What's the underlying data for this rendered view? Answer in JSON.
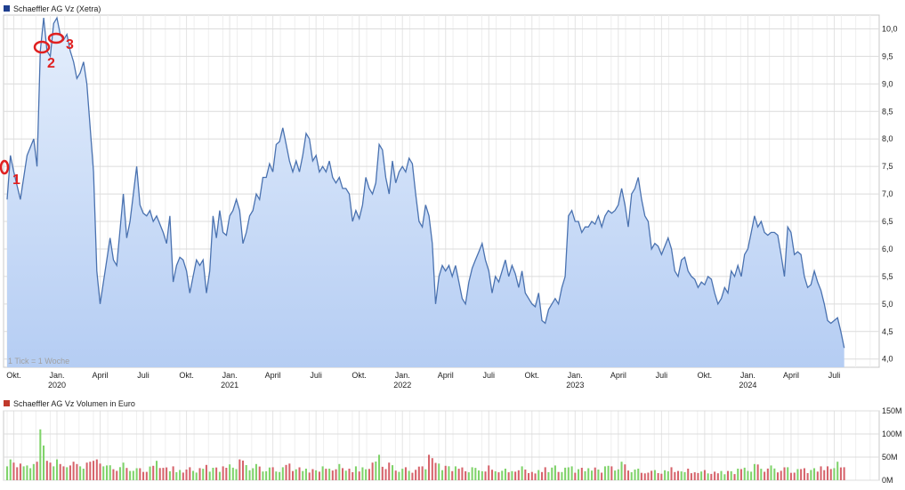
{
  "price_chart": {
    "legend": "Schaeffler AG Vz (Xetra)",
    "legend_color": "#1f3f8f",
    "tick_note": "1 Tick = 1 Woche",
    "line_color": "#4a72b0",
    "fill_color_top": "#e4eefc",
    "fill_color_bottom": "#b5cdf3"
  },
  "volume_chart": {
    "legend": "Schaeffler AG Vz Volumen in Euro",
    "legend_color": "#c0392b",
    "up_color": "#7fd36a",
    "down_color": "#d6636b"
  },
  "annotations": [
    {
      "label": "1",
      "color": "#e02020"
    },
    {
      "label": "2",
      "color": "#e02020"
    },
    {
      "label": "3",
      "color": "#e02020"
    }
  ],
  "chart_data": [
    {
      "type": "area",
      "y_axis_position": "right",
      "ylim": [
        3.85,
        10.25
      ],
      "yticks": [
        4.0,
        4.5,
        5.0,
        5.5,
        6.0,
        6.5,
        7.0,
        7.5,
        8.0,
        8.5,
        9.0,
        9.5,
        10.0
      ],
      "ytick_labels": [
        "4,0",
        "4,5",
        "5,0",
        "5,5",
        "6,0",
        "6,5",
        "7,0",
        "7,5",
        "8,0",
        "8,5",
        "9,0",
        "9,5",
        "10,0"
      ],
      "grid": true,
      "x_ticks": [
        {
          "week": 2,
          "label": "Okt.",
          "sub": ""
        },
        {
          "week": 15,
          "label": "Jan.",
          "sub": "2020"
        },
        {
          "week": 28,
          "label": "April",
          "sub": ""
        },
        {
          "week": 41,
          "label": "Juli",
          "sub": ""
        },
        {
          "week": 54,
          "label": "Okt.",
          "sub": ""
        },
        {
          "week": 67,
          "label": "Jan.",
          "sub": "2021"
        },
        {
          "week": 80,
          "label": "April",
          "sub": ""
        },
        {
          "week": 93,
          "label": "Juli",
          "sub": ""
        },
        {
          "week": 106,
          "label": "Okt.",
          "sub": ""
        },
        {
          "week": 119,
          "label": "Jan.",
          "sub": "2022"
        },
        {
          "week": 132,
          "label": "April",
          "sub": ""
        },
        {
          "week": 145,
          "label": "Juli",
          "sub": ""
        },
        {
          "week": 158,
          "label": "Okt.",
          "sub": ""
        },
        {
          "week": 171,
          "label": "Jan.",
          "sub": "2023"
        },
        {
          "week": 184,
          "label": "April",
          "sub": ""
        },
        {
          "week": 197,
          "label": "Juli",
          "sub": ""
        },
        {
          "week": 210,
          "label": "Okt.",
          "sub": ""
        },
        {
          "week": 223,
          "label": "Jan.",
          "sub": "2024"
        },
        {
          "week": 236,
          "label": "April",
          "sub": ""
        },
        {
          "week": 249,
          "label": "Juli",
          "sub": ""
        }
      ],
      "x_domain": [
        0,
        262
      ],
      "values_anchor": [
        [
          0,
          6.9
        ],
        [
          1,
          7.7
        ],
        [
          2,
          7.4
        ],
        [
          4,
          6.9
        ],
        [
          6,
          7.7
        ],
        [
          8,
          8.0
        ],
        [
          9,
          7.5
        ],
        [
          10,
          9.6
        ],
        [
          11,
          10.2
        ],
        [
          12,
          9.6
        ],
        [
          13,
          9.5
        ],
        [
          14,
          10.1
        ],
        [
          15,
          10.2
        ],
        [
          16,
          9.9
        ],
        [
          17,
          9.8
        ],
        [
          18,
          9.9
        ],
        [
          19,
          9.6
        ],
        [
          20,
          9.4
        ],
        [
          21,
          9.1
        ],
        [
          22,
          9.2
        ],
        [
          23,
          9.4
        ],
        [
          24,
          9.0
        ],
        [
          26,
          7.4
        ],
        [
          27,
          5.6
        ],
        [
          28,
          5.0
        ],
        [
          30,
          5.8
        ],
        [
          31,
          6.2
        ],
        [
          32,
          5.8
        ],
        [
          33,
          5.7
        ],
        [
          35,
          7.0
        ],
        [
          36,
          6.2
        ],
        [
          37,
          6.5
        ],
        [
          39,
          7.5
        ],
        [
          40,
          6.8
        ],
        [
          41,
          6.65
        ],
        [
          42,
          6.6
        ],
        [
          43,
          6.7
        ],
        [
          44,
          6.5
        ],
        [
          45,
          6.6
        ],
        [
          47,
          6.3
        ],
        [
          48,
          6.1
        ],
        [
          49,
          6.6
        ],
        [
          50,
          5.4
        ],
        [
          51,
          5.7
        ],
        [
          52,
          5.85
        ],
        [
          53,
          5.8
        ],
        [
          54,
          5.6
        ],
        [
          55,
          5.2
        ],
        [
          56,
          5.5
        ],
        [
          57,
          5.8
        ],
        [
          58,
          5.7
        ],
        [
          59,
          5.8
        ],
        [
          60,
          5.2
        ],
        [
          61,
          5.6
        ],
        [
          62,
          6.6
        ],
        [
          63,
          6.2
        ],
        [
          64,
          6.7
        ],
        [
          65,
          6.3
        ],
        [
          66,
          6.25
        ],
        [
          67,
          6.6
        ],
        [
          68,
          6.7
        ],
        [
          69,
          6.9
        ],
        [
          70,
          6.7
        ],
        [
          71,
          6.1
        ],
        [
          72,
          6.3
        ],
        [
          73,
          6.6
        ],
        [
          74,
          6.7
        ],
        [
          75,
          7.0
        ],
        [
          76,
          6.9
        ],
        [
          77,
          7.3
        ],
        [
          78,
          7.3
        ],
        [
          79,
          7.55
        ],
        [
          80,
          7.4
        ],
        [
          81,
          7.9
        ],
        [
          82,
          7.95
        ],
        [
          83,
          8.2
        ],
        [
          84,
          7.9
        ],
        [
          85,
          7.6
        ],
        [
          86,
          7.4
        ],
        [
          87,
          7.6
        ],
        [
          88,
          7.4
        ],
        [
          89,
          7.7
        ],
        [
          90,
          8.1
        ],
        [
          91,
          8.0
        ],
        [
          92,
          7.6
        ],
        [
          93,
          7.7
        ],
        [
          94,
          7.4
        ],
        [
          95,
          7.5
        ],
        [
          96,
          7.4
        ],
        [
          97,
          7.6
        ],
        [
          98,
          7.3
        ],
        [
          99,
          7.2
        ],
        [
          100,
          7.3
        ],
        [
          101,
          7.1
        ],
        [
          102,
          7.1
        ],
        [
          103,
          7.0
        ],
        [
          104,
          6.5
        ],
        [
          105,
          6.7
        ],
        [
          106,
          6.55
        ],
        [
          107,
          6.8
        ],
        [
          108,
          7.3
        ],
        [
          109,
          7.1
        ],
        [
          110,
          7.0
        ],
        [
          111,
          7.2
        ],
        [
          112,
          7.9
        ],
        [
          113,
          7.8
        ],
        [
          114,
          7.3
        ],
        [
          115,
          7.0
        ],
        [
          116,
          7.6
        ],
        [
          117,
          7.2
        ],
        [
          118,
          7.4
        ],
        [
          119,
          7.5
        ],
        [
          120,
          7.4
        ],
        [
          121,
          7.65
        ],
        [
          122,
          7.55
        ],
        [
          123,
          7.0
        ],
        [
          124,
          6.5
        ],
        [
          125,
          6.4
        ],
        [
          126,
          6.8
        ],
        [
          127,
          6.6
        ],
        [
          128,
          6.1
        ],
        [
          129,
          5.0
        ],
        [
          130,
          5.5
        ],
        [
          131,
          5.7
        ],
        [
          132,
          5.6
        ],
        [
          133,
          5.7
        ],
        [
          134,
          5.5
        ],
        [
          135,
          5.7
        ],
        [
          136,
          5.4
        ],
        [
          137,
          5.1
        ],
        [
          138,
          5.0
        ],
        [
          139,
          5.4
        ],
        [
          140,
          5.65
        ],
        [
          141,
          5.8
        ],
        [
          142,
          5.95
        ],
        [
          143,
          6.1
        ],
        [
          144,
          5.8
        ],
        [
          145,
          5.6
        ],
        [
          146,
          5.2
        ],
        [
          147,
          5.5
        ],
        [
          148,
          5.4
        ],
        [
          149,
          5.6
        ],
        [
          150,
          5.8
        ],
        [
          151,
          5.5
        ],
        [
          152,
          5.7
        ],
        [
          153,
          5.55
        ],
        [
          154,
          5.3
        ],
        [
          155,
          5.6
        ],
        [
          156,
          5.2
        ],
        [
          157,
          5.1
        ],
        [
          158,
          5.0
        ],
        [
          159,
          4.95
        ],
        [
          160,
          5.2
        ],
        [
          161,
          4.7
        ],
        [
          162,
          4.65
        ],
        [
          163,
          4.9
        ],
        [
          164,
          5.0
        ],
        [
          165,
          5.1
        ],
        [
          166,
          5.0
        ],
        [
          167,
          5.3
        ],
        [
          168,
          5.5
        ],
        [
          169,
          6.6
        ],
        [
          170,
          6.7
        ],
        [
          171,
          6.5
        ],
        [
          172,
          6.5
        ],
        [
          173,
          6.3
        ],
        [
          174,
          6.4
        ],
        [
          175,
          6.4
        ],
        [
          176,
          6.5
        ],
        [
          177,
          6.45
        ],
        [
          178,
          6.6
        ],
        [
          179,
          6.4
        ],
        [
          180,
          6.6
        ],
        [
          181,
          6.7
        ],
        [
          182,
          6.65
        ],
        [
          183,
          6.7
        ],
        [
          184,
          6.8
        ],
        [
          185,
          7.1
        ],
        [
          186,
          6.8
        ],
        [
          187,
          6.4
        ],
        [
          188,
          7.0
        ],
        [
          189,
          7.1
        ],
        [
          190,
          7.3
        ],
        [
          191,
          6.9
        ],
        [
          192,
          6.6
        ],
        [
          193,
          6.5
        ],
        [
          194,
          6.0
        ],
        [
          195,
          6.1
        ],
        [
          196,
          6.05
        ],
        [
          197,
          5.9
        ],
        [
          198,
          6.05
        ],
        [
          199,
          6.2
        ],
        [
          200,
          6.0
        ],
        [
          201,
          5.6
        ],
        [
          202,
          5.5
        ],
        [
          203,
          5.8
        ],
        [
          204,
          5.85
        ],
        [
          205,
          5.6
        ],
        [
          206,
          5.5
        ],
        [
          207,
          5.45
        ],
        [
          208,
          5.3
        ],
        [
          209,
          5.4
        ],
        [
          210,
          5.35
        ],
        [
          211,
          5.5
        ],
        [
          212,
          5.45
        ],
        [
          213,
          5.2
        ],
        [
          214,
          5.0
        ],
        [
          215,
          5.1
        ],
        [
          216,
          5.3
        ],
        [
          217,
          5.2
        ],
        [
          218,
          5.6
        ],
        [
          219,
          5.5
        ],
        [
          220,
          5.7
        ],
        [
          221,
          5.5
        ],
        [
          222,
          5.9
        ],
        [
          223,
          6.0
        ],
        [
          224,
          6.3
        ],
        [
          225,
          6.6
        ],
        [
          226,
          6.4
        ],
        [
          227,
          6.5
        ],
        [
          228,
          6.3
        ],
        [
          229,
          6.25
        ],
        [
          230,
          6.3
        ],
        [
          231,
          6.3
        ],
        [
          232,
          6.25
        ],
        [
          233,
          5.9
        ],
        [
          234,
          5.5
        ],
        [
          235,
          6.4
        ],
        [
          236,
          6.3
        ],
        [
          237,
          5.9
        ],
        [
          238,
          5.95
        ],
        [
          239,
          5.9
        ],
        [
          240,
          5.5
        ],
        [
          241,
          5.3
        ],
        [
          242,
          5.35
        ],
        [
          243,
          5.6
        ],
        [
          244,
          5.4
        ],
        [
          245,
          5.25
        ],
        [
          246,
          5.0
        ],
        [
          247,
          4.7
        ],
        [
          248,
          4.65
        ],
        [
          249,
          4.7
        ],
        [
          250,
          4.75
        ],
        [
          251,
          4.5
        ],
        [
          252,
          4.2
        ]
      ]
    },
    {
      "type": "bar",
      "y_axis_position": "right",
      "ylim": [
        0,
        150
      ],
      "yticks": [
        0,
        50,
        100,
        150
      ],
      "ytick_labels": [
        "0M",
        "50M",
        "100M",
        "150M"
      ],
      "grid": true,
      "unit": "Mio. Euro",
      "volumes_anchor": [
        [
          0,
          30
        ],
        [
          1,
          45
        ],
        [
          2,
          38
        ],
        [
          3,
          28
        ],
        [
          4,
          36
        ],
        [
          5,
          30
        ],
        [
          6,
          32
        ],
        [
          7,
          26
        ],
        [
          8,
          35
        ],
        [
          9,
          40
        ],
        [
          10,
          110
        ],
        [
          11,
          75
        ],
        [
          12,
          42
        ],
        [
          13,
          38
        ],
        [
          14,
          30
        ],
        [
          15,
          45
        ],
        [
          16,
          35
        ],
        [
          17,
          30
        ],
        [
          18,
          28
        ],
        [
          19,
          32
        ],
        [
          20,
          40
        ],
        [
          21,
          35
        ],
        [
          22,
          30
        ],
        [
          23,
          25
        ],
        [
          24,
          38
        ],
        [
          25,
          40
        ],
        [
          26,
          42
        ],
        [
          27,
          45
        ],
        [
          28,
          36
        ],
        [
          29,
          30
        ],
        [
          30,
          32
        ],
        [
          35,
          38
        ],
        [
          40,
          26
        ],
        [
          45,
          42
        ],
        [
          50,
          30
        ],
        [
          55,
          28
        ],
        [
          60,
          33
        ],
        [
          65,
          30
        ],
        [
          70,
          45
        ],
        [
          75,
          35
        ],
        [
          80,
          28
        ],
        [
          85,
          36
        ],
        [
          90,
          25
        ],
        [
          95,
          30
        ],
        [
          100,
          35
        ],
        [
          105,
          30
        ],
        [
          110,
          38
        ],
        [
          112,
          55
        ],
        [
          115,
          38
        ],
        [
          120,
          28
        ],
        [
          125,
          30
        ],
        [
          127,
          55
        ],
        [
          130,
          36
        ],
        [
          135,
          30
        ],
        [
          140,
          28
        ],
        [
          145,
          32
        ],
        [
          150,
          25
        ],
        [
          155,
          30
        ],
        [
          160,
          22
        ],
        [
          162,
          28
        ],
        [
          165,
          32
        ],
        [
          170,
          30
        ],
        [
          175,
          26
        ],
        [
          180,
          30
        ],
        [
          185,
          40
        ],
        [
          190,
          25
        ],
        [
          195,
          22
        ],
        [
          200,
          28
        ],
        [
          205,
          25
        ],
        [
          210,
          22
        ],
        [
          215,
          20
        ],
        [
          220,
          25
        ],
        [
          225,
          35
        ],
        [
          230,
          32
        ],
        [
          235,
          28
        ],
        [
          240,
          26
        ],
        [
          245,
          30
        ],
        [
          250,
          40
        ],
        [
          252,
          28
        ]
      ]
    }
  ]
}
